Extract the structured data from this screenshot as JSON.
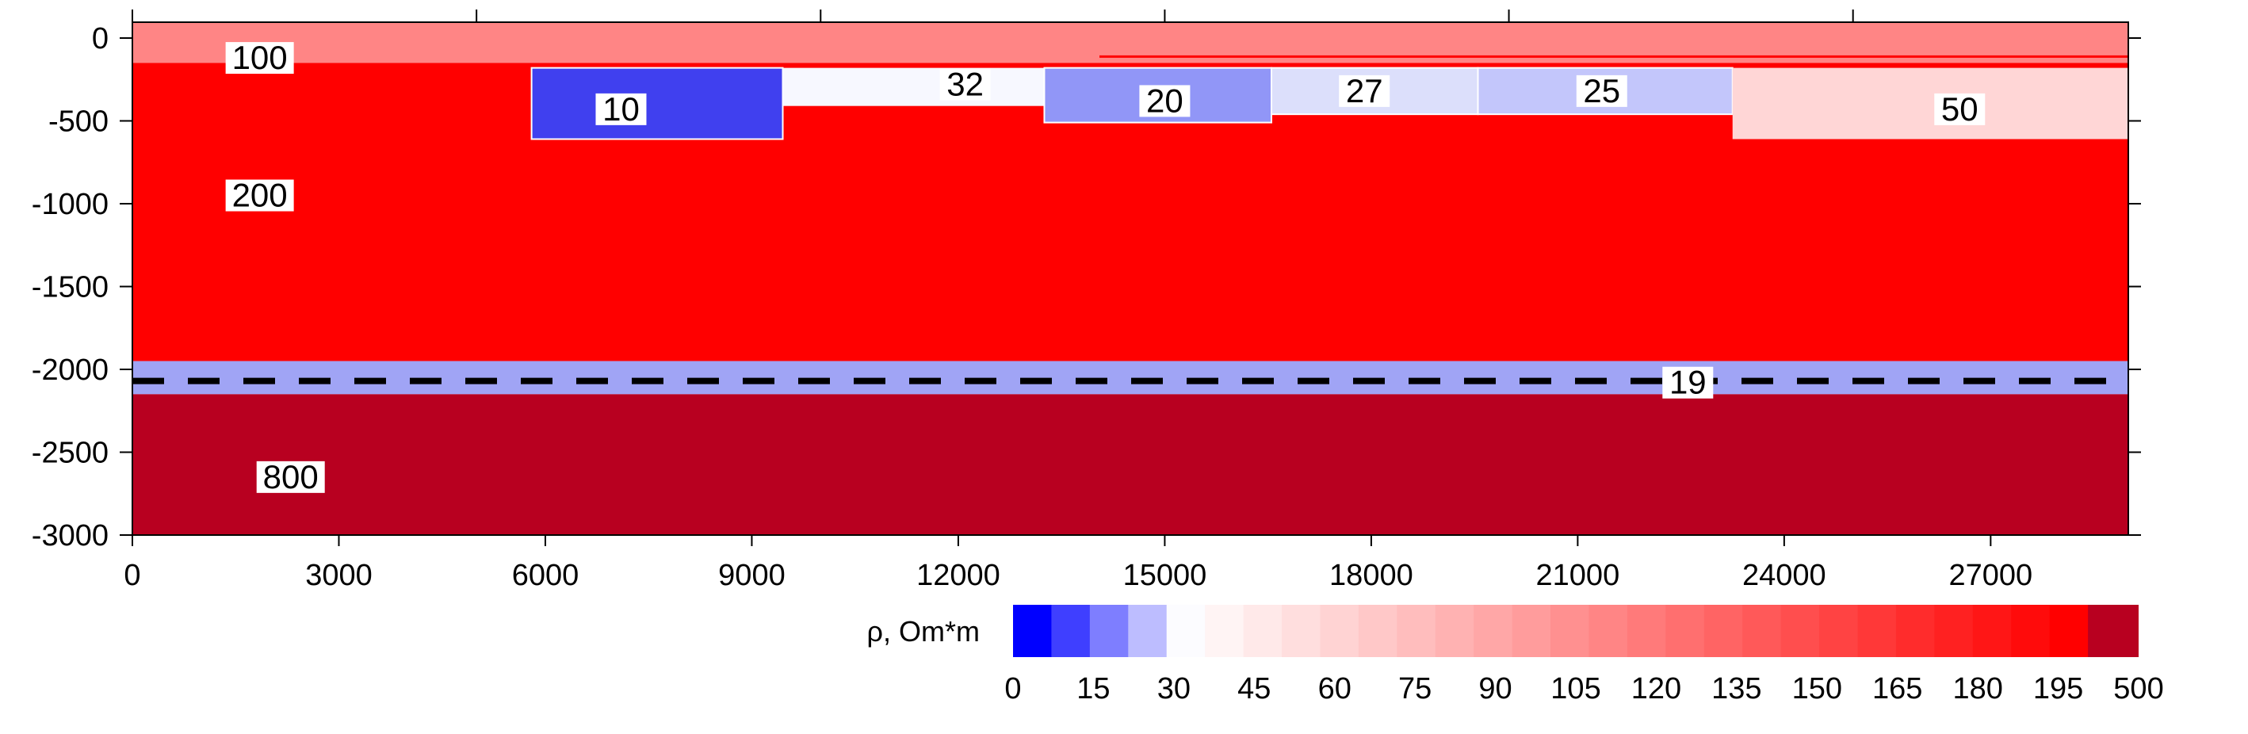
{
  "chart_data": {
    "type": "heatmap",
    "title": "",
    "xlabel": "",
    "ylabel": "",
    "xlim": [
      0,
      29000
    ],
    "ylim": [
      -3000,
      100
    ],
    "x_ticks": [
      0,
      3000,
      6000,
      9000,
      12000,
      15000,
      18000,
      21000,
      24000,
      27000
    ],
    "y_ticks": [
      0,
      -500,
      -1000,
      -1500,
      -2000,
      -2500,
      -3000
    ],
    "regions": [
      {
        "label": "100",
        "resistivity": 100,
        "x0": 0,
        "x1": 29000,
        "y_top": 0,
        "y_bottom": -150,
        "color": "#ff8585"
      },
      {
        "label": "200",
        "resistivity": 200,
        "x0": 0,
        "x1": 29000,
        "y_top": -150,
        "y_bottom": -1950,
        "color": "#ff0000"
      },
      {
        "label": "10",
        "resistivity": 10,
        "x0": 5800,
        "x1": 9450,
        "y_top": -180,
        "y_bottom": -610,
        "color": "#4040ef"
      },
      {
        "label": "32",
        "resistivity": 32,
        "x0": 9450,
        "x1": 13250,
        "y_top": -180,
        "y_bottom": -410,
        "color": "#f7f8ff"
      },
      {
        "label": "20",
        "resistivity": 20,
        "x0": 13250,
        "x1": 16550,
        "y_top": -180,
        "y_bottom": -510,
        "color": "#9196f7"
      },
      {
        "label": "27",
        "resistivity": 27,
        "x0": 16550,
        "x1": 19550,
        "y_top": -180,
        "y_bottom": -460,
        "color": "#dcdffb"
      },
      {
        "label": "25",
        "resistivity": 25,
        "x0": 19550,
        "x1": 23250,
        "y_top": -180,
        "y_bottom": -460,
        "color": "#c3c6fb"
      },
      {
        "label": "50",
        "resistivity": 50,
        "x0": 23250,
        "x1": 29000,
        "y_top": -180,
        "y_bottom": -610,
        "color": "#ffd6d6"
      },
      {
        "label": "19",
        "resistivity": 19,
        "x0": 0,
        "x1": 29000,
        "y_top": -1950,
        "y_bottom": -2150,
        "color": "#a0a4f5"
      },
      {
        "label": "800",
        "resistivity": 800,
        "x0": 0,
        "x1": 29000,
        "y_top": -2150,
        "y_bottom": -3000,
        "color": "#b80020"
      }
    ],
    "labels": [
      {
        "text": "100",
        "x": 1850,
        "y": -120
      },
      {
        "text": "10",
        "x": 7100,
        "y": -430
      },
      {
        "text": "32",
        "x": 12100,
        "y": -280
      },
      {
        "text": "20",
        "x": 15000,
        "y": -380
      },
      {
        "text": "27",
        "x": 17900,
        "y": -320
      },
      {
        "text": "25",
        "x": 21350,
        "y": -320
      },
      {
        "text": "50",
        "x": 26550,
        "y": -430
      },
      {
        "text": "200",
        "x": 1850,
        "y": -950
      },
      {
        "text": "19",
        "x": 22600,
        "y": -2080
      },
      {
        "text": "800",
        "x": 2300,
        "y": -2650
      }
    ],
    "boundary_line": {
      "y": -2070,
      "style": "dashed",
      "color": "#000000"
    },
    "colorbar": {
      "label": "ρ, Om*m",
      "tick_labels": [
        "0",
        "15",
        "30",
        "45",
        "60",
        "75",
        "90",
        "105",
        "120",
        "135",
        "150",
        "165",
        "180",
        "195",
        "500"
      ],
      "low_color": "#0000ff",
      "mid_color": "#ffffff",
      "high_color": "#ff0000",
      "top_color": "#b80020"
    }
  }
}
